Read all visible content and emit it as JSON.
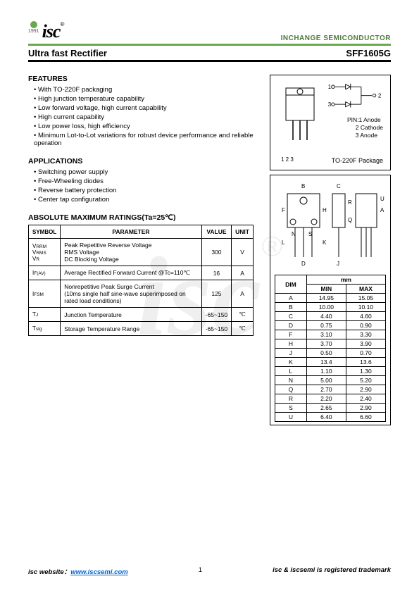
{
  "header": {
    "logo_text": "isc",
    "logo_year": "1991",
    "logo_r": "®",
    "company": "INCHANGE SEMICONDUCTOR"
  },
  "title": {
    "left": "Ultra fast Rectifier",
    "right": "SFF1605G"
  },
  "features": {
    "heading": "FEATURES",
    "items": [
      "With TO-220F packaging",
      "High junction temperature capability",
      "Low forward voltage, high current capability",
      "High current capability",
      "Low power loss, high efficiency",
      "Minimum Lot-to-Lot variations for robust device performance and reliable operation"
    ]
  },
  "applications": {
    "heading": "APPLICATIONS",
    "items": [
      "Switching power supply",
      "Free-Wheeling diodes",
      "Reverse battery protection",
      "Center tap configuration"
    ]
  },
  "package": {
    "pins_label": "1 2 3",
    "pin_list_title": "PIN:",
    "pin_list": [
      "1 Anode",
      "2 Cathode",
      "3 Anode"
    ],
    "pkg_name": "TO-220F Package",
    "schematic_labels": {
      "p1": "1",
      "p2": "2",
      "p3": "3"
    }
  },
  "dimensions": {
    "unit_label": "mm",
    "dim_header": "DIM",
    "min_header": "MIN",
    "max_header": "MAX",
    "rows": [
      {
        "dim": "A",
        "min": "14.95",
        "max": "15.05"
      },
      {
        "dim": "B",
        "min": "10.00",
        "max": "10.10"
      },
      {
        "dim": "C",
        "min": "4.40",
        "max": "4.60"
      },
      {
        "dim": "D",
        "min": "0.75",
        "max": "0.90"
      },
      {
        "dim": "F",
        "min": "3.10",
        "max": "3.30"
      },
      {
        "dim": "H",
        "min": "3.70",
        "max": "3.90"
      },
      {
        "dim": "J",
        "min": "0.50",
        "max": "0.70"
      },
      {
        "dim": "K",
        "min": "13.4",
        "max": "13.6"
      },
      {
        "dim": "L",
        "min": "1.10",
        "max": "1.30"
      },
      {
        "dim": "N",
        "min": "5.00",
        "max": "5.20"
      },
      {
        "dim": "Q",
        "min": "2.70",
        "max": "2.90"
      },
      {
        "dim": "R",
        "min": "2.20",
        "max": "2.40"
      },
      {
        "dim": "S",
        "min": "2.65",
        "max": "2.90"
      },
      {
        "dim": "U",
        "min": "6.40",
        "max": "6.60"
      }
    ],
    "dim_labels": [
      "A",
      "B",
      "C",
      "D",
      "F",
      "H",
      "J",
      "K",
      "L",
      "N",
      "Q",
      "R",
      "S",
      "U"
    ]
  },
  "ratings": {
    "heading": "ABSOLUTE MAXIMUM RATINGS(Ta=25℃)",
    "columns": {
      "symbol": "SYMBOL",
      "parameter": "PARAMETER",
      "value": "VALUE",
      "unit": "UNIT"
    },
    "rows": [
      {
        "symbol_html": "V<span class='sub'>RRM</span><br>V<span class='sub'>RMS</span><br>V<span class='sub'>R</span>",
        "parameter": "Peak Repetitive Reverse Voltage\nRMS Voltage\nDC Blocking Voltage",
        "value": "300",
        "unit": "V"
      },
      {
        "symbol_html": "I<span class='sub'>F(AV)</span>",
        "parameter": "Average Rectified Forward Current @Tc=110℃",
        "value": "16",
        "unit": "A"
      },
      {
        "symbol_html": "I<span class='sub'>FSM</span>",
        "parameter": "Nonrepetitive Peak Surge Current\n(10ms single half sine-wave superimposed on rated load conditions)",
        "value": "125",
        "unit": "A"
      },
      {
        "symbol_html": "T<span class='sub'>J</span>",
        "parameter": "Junction Temperature",
        "value": "-65~150",
        "unit": "℃"
      },
      {
        "symbol_html": "T<span class='sub'>stg</span>",
        "parameter": "Storage Temperature Range",
        "value": "-65~150",
        "unit": "℃"
      }
    ]
  },
  "footer": {
    "website_label": "isc website：",
    "website_url": "www.iscsemi.com",
    "page": "1",
    "trademark": "isc & iscsemi is registered trademark"
  },
  "styling": {
    "green": "#6aa84f",
    "link_color": "#0066cc",
    "font_body": 10,
    "font_title": 13,
    "font_section": 10.5,
    "font_table": 8.5
  }
}
